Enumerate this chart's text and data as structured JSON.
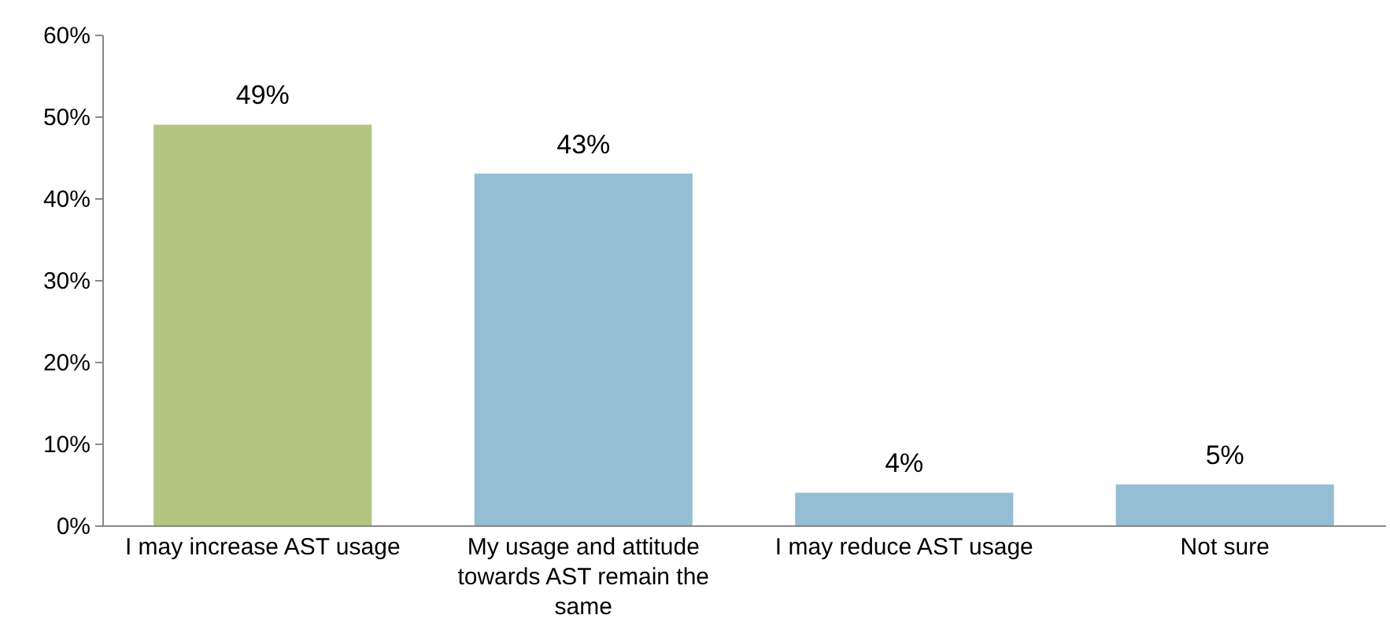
{
  "chart_data": {
    "type": "bar",
    "categories": [
      "I may increase AST usage",
      "My usage and attitude towards AST remain the same",
      "I may reduce AST usage",
      "Not sure"
    ],
    "values": [
      49,
      43,
      4,
      5
    ],
    "colors": [
      "#b3c580",
      "#95bdd4",
      "#95bdd4",
      "#95bdd4"
    ],
    "value_labels": [
      "49%",
      "43%",
      "4%",
      "5%"
    ],
    "ylim": [
      0,
      60
    ],
    "yticks": [
      {
        "value": 0,
        "label": "0%"
      },
      {
        "value": 10,
        "label": "10%"
      },
      {
        "value": 20,
        "label": "20%"
      },
      {
        "value": 30,
        "label": "30%"
      },
      {
        "value": 40,
        "label": "40%"
      },
      {
        "value": 50,
        "label": "50%"
      },
      {
        "value": 60,
        "label": "60%"
      }
    ],
    "grid": false
  }
}
